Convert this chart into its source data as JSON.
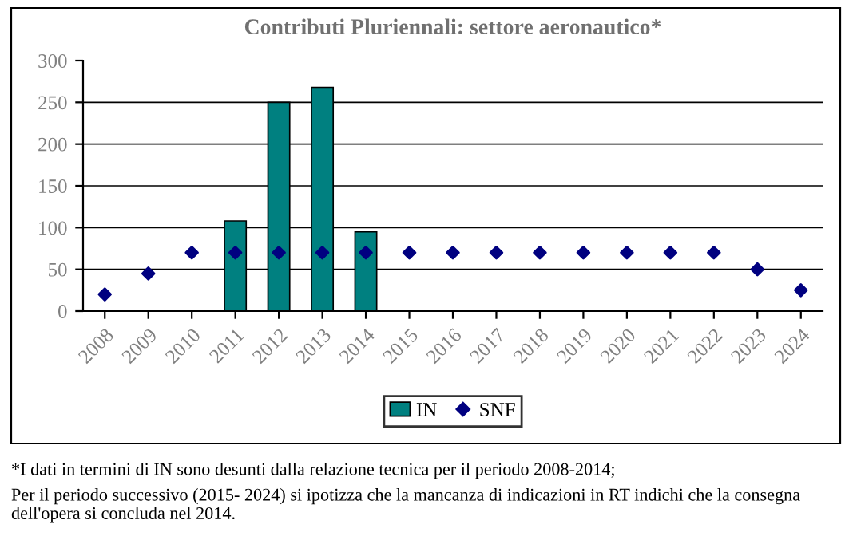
{
  "chart_data": {
    "type": "bar",
    "title": "Contributi Pluriennali: settore aeronautico*",
    "categories": [
      "2008",
      "2009",
      "2010",
      "2011",
      "2012",
      "2013",
      "2014",
      "2015",
      "2016",
      "2017",
      "2018",
      "2019",
      "2020",
      "2021",
      "2022",
      "2023",
      "2024"
    ],
    "series": [
      {
        "name": "IN",
        "color": "#008080",
        "values": [
          null,
          null,
          null,
          108,
          250,
          268,
          95,
          null,
          null,
          null,
          null,
          null,
          null,
          null,
          null,
          null,
          null
        ]
      },
      {
        "name": "SNF",
        "type": "scatter",
        "color": "#000080",
        "marker": "diamond",
        "values": [
          20,
          45,
          70,
          70,
          70,
          70,
          70,
          70,
          70,
          70,
          70,
          70,
          70,
          70,
          70,
          50,
          25
        ]
      }
    ],
    "ylim": [
      0,
      300
    ],
    "yticks": [
      0,
      50,
      100,
      150,
      200,
      250,
      300
    ],
    "grid": "y",
    "legend": "bottom",
    "annotations": [
      "*I dati in termini di IN sono desunti dalla relazione tecnica per il periodo 2008-2014;",
      "Per il periodo successivo (2015- 2024) si ipotizza che la mancanza di indicazioni in RT indichi che la consegna dell'opera si concluda nel 2014."
    ]
  }
}
